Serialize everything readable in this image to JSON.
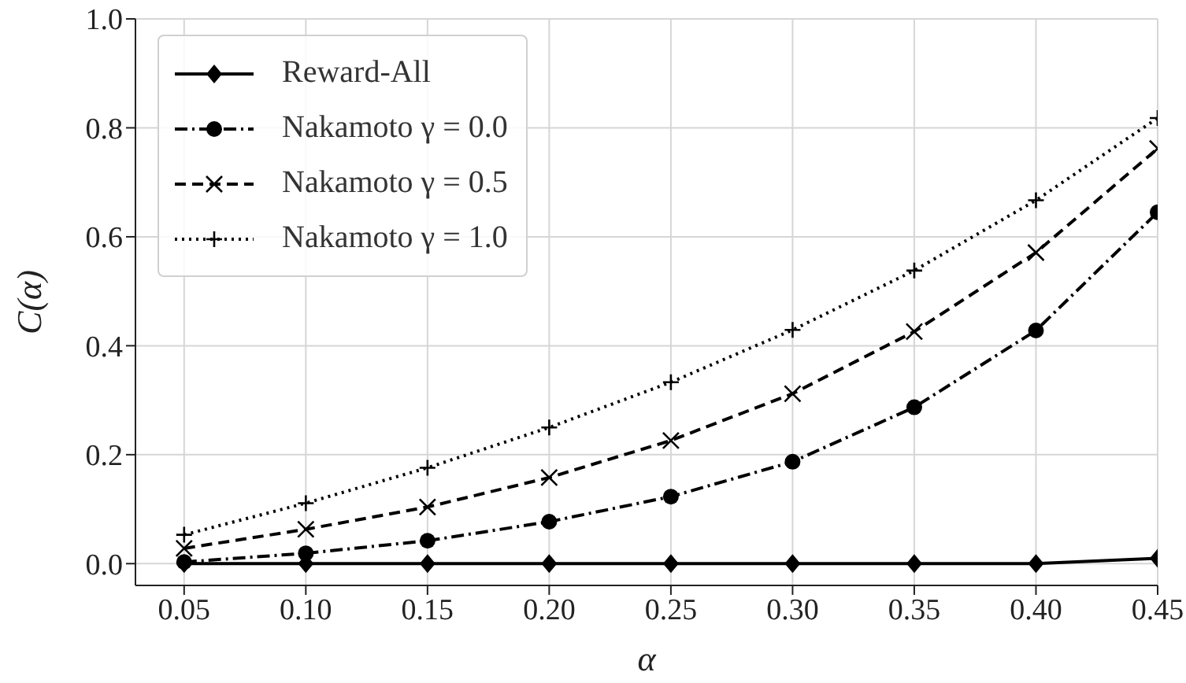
{
  "chart_data": {
    "type": "line",
    "xlabel": "α",
    "ylabel": "C(α)",
    "x": [
      0.05,
      0.1,
      0.15,
      0.2,
      0.25,
      0.3,
      0.35,
      0.4,
      0.45
    ],
    "series": [
      {
        "name": "Reward-All",
        "color": "#000000",
        "marker": "diamond",
        "line_style": "solid",
        "values": [
          0,
          0,
          0,
          0,
          0,
          0,
          0,
          0,
          0.01
        ]
      },
      {
        "name": "Nakamoto γ = 0.0",
        "color": "#000000",
        "marker": "circle",
        "line_style": "dashdot",
        "values": [
          0.003,
          0.019,
          0.042,
          0.077,
          0.123,
          0.187,
          0.287,
          0.428,
          0.645
        ]
      },
      {
        "name": "Nakamoto γ = 0.5",
        "color": "#000000",
        "marker": "cross",
        "line_style": "dashed",
        "values": [
          0.028,
          0.063,
          0.104,
          0.158,
          0.226,
          0.312,
          0.426,
          0.571,
          0.762
        ]
      },
      {
        "name": "Nakamoto γ = 1.0",
        "color": "#000000",
        "marker": "plus",
        "line_style": "dotted",
        "values": [
          0.053,
          0.111,
          0.176,
          0.25,
          0.333,
          0.429,
          0.538,
          0.667,
          0.818
        ]
      }
    ],
    "xlim": [
      0.03,
      0.45
    ],
    "ylim": [
      -0.04,
      1.0
    ],
    "xticks": [
      {
        "value": 0.05,
        "label": "0.05"
      },
      {
        "value": 0.1,
        "label": "0.10"
      },
      {
        "value": 0.15,
        "label": "0.15"
      },
      {
        "value": 0.2,
        "label": "0.20"
      },
      {
        "value": 0.25,
        "label": "0.25"
      },
      {
        "value": 0.3,
        "label": "0.30"
      },
      {
        "value": 0.35,
        "label": "0.35"
      },
      {
        "value": 0.4,
        "label": "0.40"
      },
      {
        "value": 0.45,
        "label": "0.45"
      }
    ],
    "yticks": [
      {
        "value": 0,
        "label": "0.0"
      },
      {
        "value": 0.2,
        "label": "0.2"
      },
      {
        "value": 0.4,
        "label": "0.4"
      },
      {
        "value": 0.6,
        "label": "0.6"
      },
      {
        "value": 0.8,
        "label": "0.8"
      },
      {
        "value": 1.0,
        "label": "1.0"
      }
    ],
    "grid": true,
    "legend": "top left"
  }
}
